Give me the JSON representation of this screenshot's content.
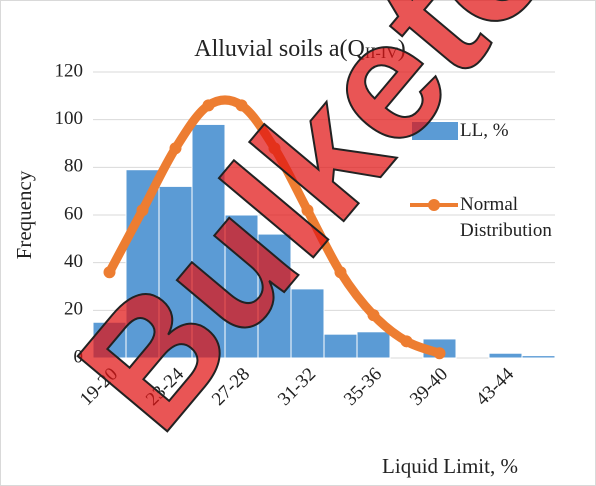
{
  "chart_data": {
    "type": "bar",
    "title": "Alluvial soils a(Q",
    "title_subscript": "II-IV",
    "title_end": ")",
    "xlabel": "Liquid Limit, %",
    "ylabel": "Frequency",
    "categories": [
      "19-20",
      null,
      "23-24",
      null,
      "27-28",
      null,
      "31-32",
      null,
      "35-36",
      null,
      "39-40",
      null,
      "43-44",
      null
    ],
    "series": [
      {
        "name": "LL, %",
        "type": "bar",
        "color": "#5b9bd5",
        "values": [
          15,
          79,
          72,
          98,
          60,
          52,
          29,
          10,
          11,
          0,
          8,
          0,
          2,
          1
        ]
      },
      {
        "name": "Normal Distribution",
        "type": "line",
        "color": "#ed7d31",
        "values": [
          36,
          62,
          88,
          106,
          106,
          88,
          62,
          36,
          18,
          7,
          2,
          null,
          null,
          null
        ]
      }
    ],
    "ylim": [
      0,
      120
    ],
    "yticks": [
      0,
      20,
      40,
      60,
      80,
      100,
      120
    ],
    "grid": true,
    "legend": "right",
    "watermark": "Bulketov"
  }
}
